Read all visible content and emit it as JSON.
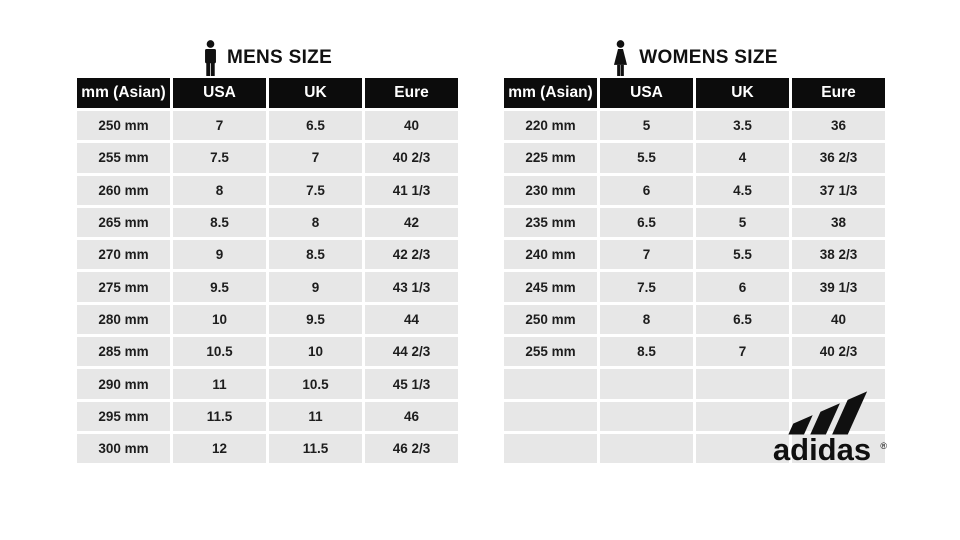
{
  "colors": {
    "background": "#ffffff",
    "header_bg": "#0c0c0c",
    "header_text": "#ffffff",
    "row_bg": "#e7e7e7",
    "cell_text": "#1d1d1d",
    "logo_color": "#101010"
  },
  "chart_data": [
    {
      "type": "table",
      "title": "MENS SIZE",
      "icon": "man-icon",
      "columns": [
        "mm (Asian)",
        "USA",
        "UK",
        "Eure"
      ],
      "rows": [
        [
          "250 mm",
          "7",
          "6.5",
          "40"
        ],
        [
          "255 mm",
          "7.5",
          "7",
          "40 2/3"
        ],
        [
          "260 mm",
          "8",
          "7.5",
          "41 1/3"
        ],
        [
          "265 mm",
          "8.5",
          "8",
          "42"
        ],
        [
          "270 mm",
          "9",
          "8.5",
          "42 2/3"
        ],
        [
          "275 mm",
          "9.5",
          "9",
          "43 1/3"
        ],
        [
          "280 mm",
          "10",
          "9.5",
          "44"
        ],
        [
          "285 mm",
          "10.5",
          "10",
          "44 2/3"
        ],
        [
          "290 mm",
          "11",
          "10.5",
          "45 1/3"
        ],
        [
          "295 mm",
          "11.5",
          "11",
          "46"
        ],
        [
          "300 mm",
          "12",
          "11.5",
          "46 2/3"
        ]
      ]
    },
    {
      "type": "table",
      "title": "WOMENS SIZE",
      "icon": "woman-icon",
      "columns": [
        "mm (Asian)",
        "USA",
        "UK",
        "Eure"
      ],
      "rows": [
        [
          "220 mm",
          "5",
          "3.5",
          "36"
        ],
        [
          "225 mm",
          "5.5",
          "4",
          "36 2/3"
        ],
        [
          "230 mm",
          "6",
          "4.5",
          "37 1/3"
        ],
        [
          "235 mm",
          "6.5",
          "5",
          "38"
        ],
        [
          "240 mm",
          "7",
          "5.5",
          "38 2/3"
        ],
        [
          "245 mm",
          "7.5",
          "6",
          "39 1/3"
        ],
        [
          "250 mm",
          "8",
          "6.5",
          "40"
        ],
        [
          "255 mm",
          "8.5",
          "7",
          "40 2/3"
        ],
        [
          "",
          "",
          "",
          ""
        ],
        [
          "",
          "",
          "",
          ""
        ],
        [
          "",
          "",
          "",
          ""
        ]
      ]
    }
  ],
  "brand": {
    "wordmark": "adidas",
    "registered": "®"
  }
}
